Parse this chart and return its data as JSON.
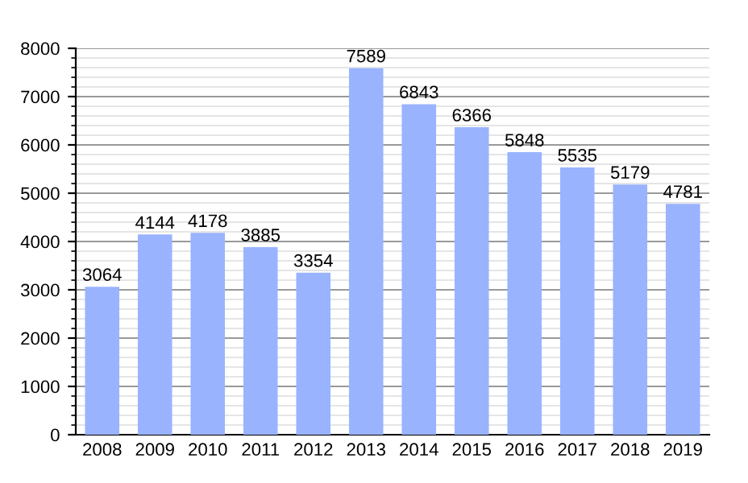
{
  "chart_data": {
    "type": "bar",
    "categories": [
      "2008",
      "2009",
      "2010",
      "2011",
      "2012",
      "2013",
      "2014",
      "2015",
      "2016",
      "2017",
      "2018",
      "2019"
    ],
    "values": [
      3064,
      4144,
      4178,
      3885,
      3354,
      7589,
      6843,
      6366,
      5848,
      5535,
      5179,
      4781
    ],
    "color": "#99b3ff",
    "ylim": [
      0,
      8000
    ],
    "yticks": [
      0,
      1000,
      2000,
      3000,
      4000,
      5000,
      6000,
      7000,
      8000
    ],
    "grid": "y",
    "data_labels": true
  }
}
